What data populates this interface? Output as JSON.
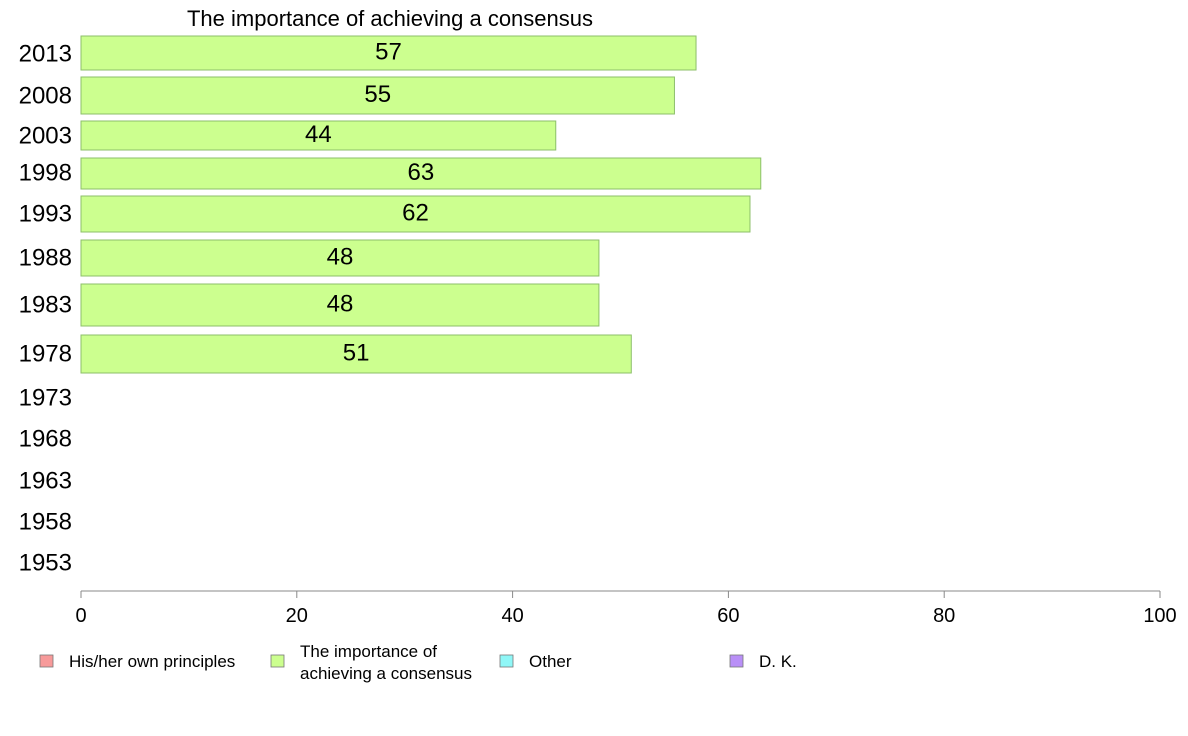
{
  "chart_data": {
    "type": "bar",
    "orientation": "horizontal",
    "title": "The importance of achieving a consensus",
    "categories": [
      "2013",
      "2008",
      "2003",
      "1998",
      "1993",
      "1988",
      "1983",
      "1978",
      "1973",
      "1968",
      "1963",
      "1958",
      "1953"
    ],
    "series": [
      {
        "name": "The importance of achieving a consensus",
        "values": [
          57,
          55,
          44,
          63,
          62,
          48,
          48,
          51,
          null,
          null,
          null,
          null,
          null
        ]
      }
    ],
    "data_labels": [
      "57",
      "55",
      "44",
      "63",
      "62",
      "48",
      "48",
      "51",
      "",
      "",
      "",
      "",
      ""
    ],
    "xlim": [
      0,
      100
    ],
    "xticks": [
      "0",
      "20",
      "40",
      "60",
      "80",
      "100"
    ],
    "legend": {
      "placement": "bottom",
      "items": [
        {
          "label_lines": [
            "His/her own principles"
          ],
          "color": "#f79a9a"
        },
        {
          "label_lines": [
            "The importance of",
            "achieving a consensus"
          ],
          "color": "#ccff8f"
        },
        {
          "label_lines": [
            "Other"
          ],
          "color": "#8ff7f7"
        },
        {
          "label_lines": [
            "D. K."
          ],
          "color": "#b98ff7"
        }
      ]
    },
    "grid": false
  }
}
